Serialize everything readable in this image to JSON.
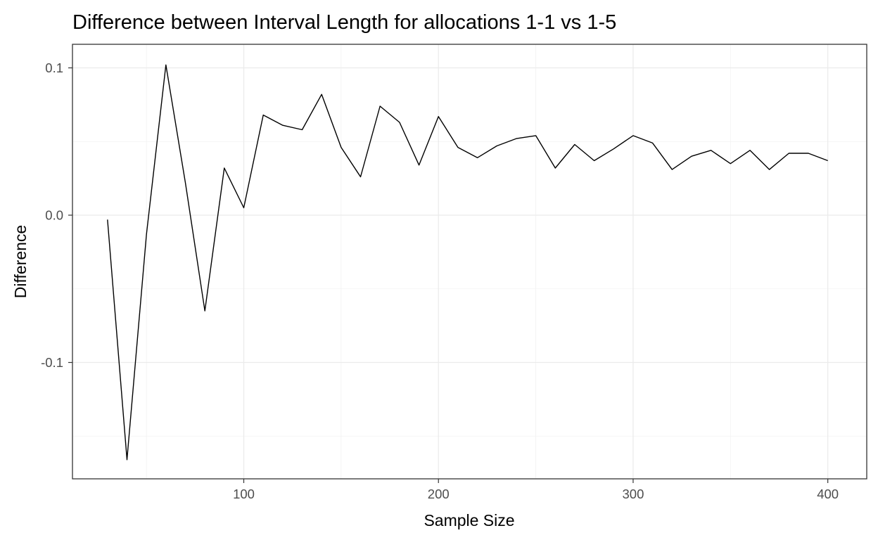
{
  "chart_data": {
    "type": "line",
    "title": "Difference between Interval Length for allocations 1-1 vs 1-5",
    "xlabel": "Sample Size",
    "ylabel": "Difference",
    "xlim": [
      12,
      420
    ],
    "ylim": [
      -0.179,
      0.116
    ],
    "xticks": [
      100,
      200,
      300,
      400
    ],
    "xtick_labels": [
      "100",
      "200",
      "300",
      "400"
    ],
    "yticks": [
      -0.1,
      0.0,
      0.1
    ],
    "ytick_labels": [
      "-0.1",
      "0.0",
      "0.1"
    ],
    "x_minor_ticks": [
      50,
      150,
      250,
      350
    ],
    "y_minor_ticks": [
      -0.15,
      -0.05,
      0.05
    ],
    "grid": true,
    "line_color": "#000000",
    "series": [
      {
        "x": [
          30,
          40,
          50,
          60,
          70,
          80,
          90,
          100,
          110,
          120,
          130,
          140,
          150,
          160,
          170,
          180,
          190,
          200,
          210,
          220,
          230,
          240,
          250,
          260,
          270,
          280,
          290,
          300,
          310,
          320,
          330,
          340,
          350,
          360,
          370,
          380,
          390,
          400
        ],
        "y": [
          -0.003,
          -0.166,
          -0.013,
          0.102,
          0.022,
          -0.065,
          0.032,
          0.005,
          0.068,
          0.061,
          0.058,
          0.082,
          0.046,
          0.026,
          0.074,
          0.063,
          0.034,
          0.067,
          0.046,
          0.039,
          0.047,
          0.052,
          0.054,
          0.032,
          0.048,
          0.037,
          0.045,
          0.054,
          0.049,
          0.031,
          0.04,
          0.044,
          0.035,
          0.044,
          0.031,
          0.042,
          0.042,
          0.037
        ]
      }
    ]
  }
}
